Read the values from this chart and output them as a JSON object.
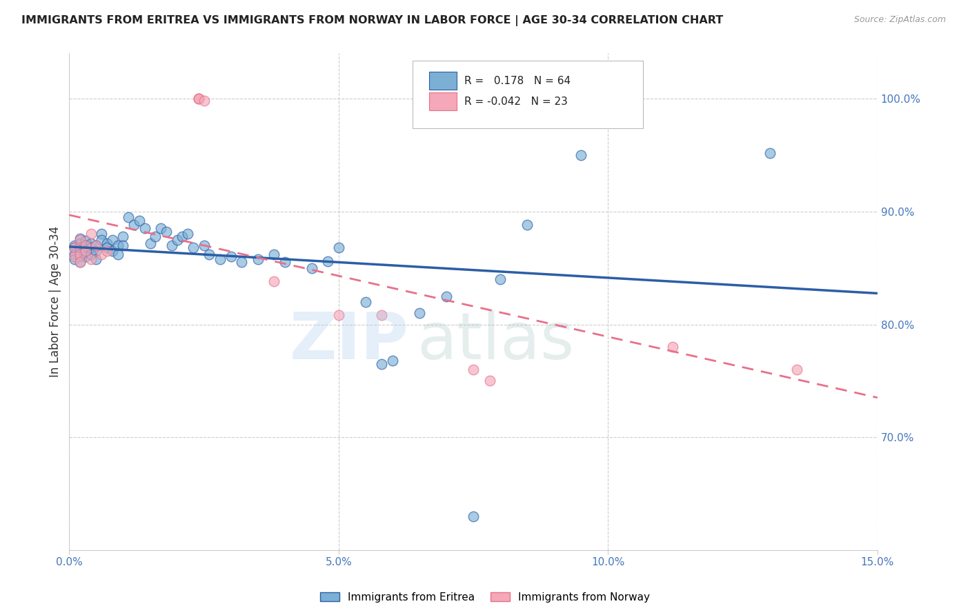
{
  "title": "IMMIGRANTS FROM ERITREA VS IMMIGRANTS FROM NORWAY IN LABOR FORCE | AGE 30-34 CORRELATION CHART",
  "source": "Source: ZipAtlas.com",
  "ylabel": "In Labor Force | Age 30-34",
  "xmin": 0.0,
  "xmax": 0.15,
  "ymin": 0.6,
  "ymax": 1.04,
  "yticks": [
    0.7,
    0.8,
    0.9,
    1.0
  ],
  "ytick_labels": [
    "70.0%",
    "80.0%",
    "90.0%",
    "100.0%"
  ],
  "xticks": [
    0.0,
    0.05,
    0.1,
    0.15
  ],
  "xtick_labels": [
    "0.0%",
    "5.0%",
    "10.0%",
    "15.0%"
  ],
  "legend_label1": "Immigrants from Eritrea",
  "legend_label2": "Immigrants from Norway",
  "blue_color": "#7BAFD4",
  "pink_color": "#F4A8B8",
  "line_blue": "#2B5EA7",
  "line_pink": "#E8708A",
  "axis_color": "#4477BB",
  "title_color": "#222222",
  "eritrea_x": [
    0.001,
    0.001,
    0.001,
    0.001,
    0.002,
    0.002,
    0.002,
    0.002,
    0.002,
    0.002,
    0.003,
    0.003,
    0.003,
    0.003,
    0.004,
    0.004,
    0.004,
    0.005,
    0.005,
    0.005,
    0.006,
    0.006,
    0.007,
    0.007,
    0.008,
    0.008,
    0.009,
    0.009,
    0.01,
    0.01,
    0.011,
    0.012,
    0.013,
    0.014,
    0.015,
    0.016,
    0.017,
    0.018,
    0.019,
    0.02,
    0.021,
    0.022,
    0.023,
    0.025,
    0.026,
    0.028,
    0.03,
    0.032,
    0.035,
    0.038,
    0.04,
    0.045,
    0.048,
    0.05,
    0.055,
    0.058,
    0.06,
    0.065,
    0.07,
    0.08,
    0.085,
    0.095,
    0.13,
    0.075
  ],
  "eritrea_y": [
    0.87,
    0.868,
    0.862,
    0.858,
    0.876,
    0.872,
    0.868,
    0.865,
    0.86,
    0.855,
    0.874,
    0.87,
    0.865,
    0.86,
    0.872,
    0.868,
    0.862,
    0.87,
    0.865,
    0.858,
    0.88,
    0.875,
    0.872,
    0.868,
    0.875,
    0.865,
    0.87,
    0.862,
    0.878,
    0.87,
    0.895,
    0.888,
    0.892,
    0.885,
    0.872,
    0.878,
    0.885,
    0.882,
    0.87,
    0.875,
    0.878,
    0.88,
    0.868,
    0.87,
    0.862,
    0.858,
    0.86,
    0.855,
    0.858,
    0.862,
    0.855,
    0.85,
    0.856,
    0.868,
    0.82,
    0.765,
    0.768,
    0.81,
    0.825,
    0.84,
    0.888,
    0.95,
    0.952,
    0.63
  ],
  "norway_x": [
    0.001,
    0.001,
    0.002,
    0.002,
    0.002,
    0.003,
    0.003,
    0.004,
    0.004,
    0.005,
    0.006,
    0.007,
    0.024,
    0.024,
    0.024,
    0.025,
    0.038,
    0.05,
    0.058,
    0.075,
    0.078,
    0.112,
    0.135
  ],
  "norway_y": [
    0.868,
    0.86,
    0.875,
    0.862,
    0.855,
    0.87,
    0.865,
    0.88,
    0.858,
    0.87,
    0.862,
    0.865,
    1.0,
    1.0,
    1.0,
    0.998,
    0.838,
    0.808,
    0.808,
    0.76,
    0.75,
    0.78,
    0.76
  ]
}
